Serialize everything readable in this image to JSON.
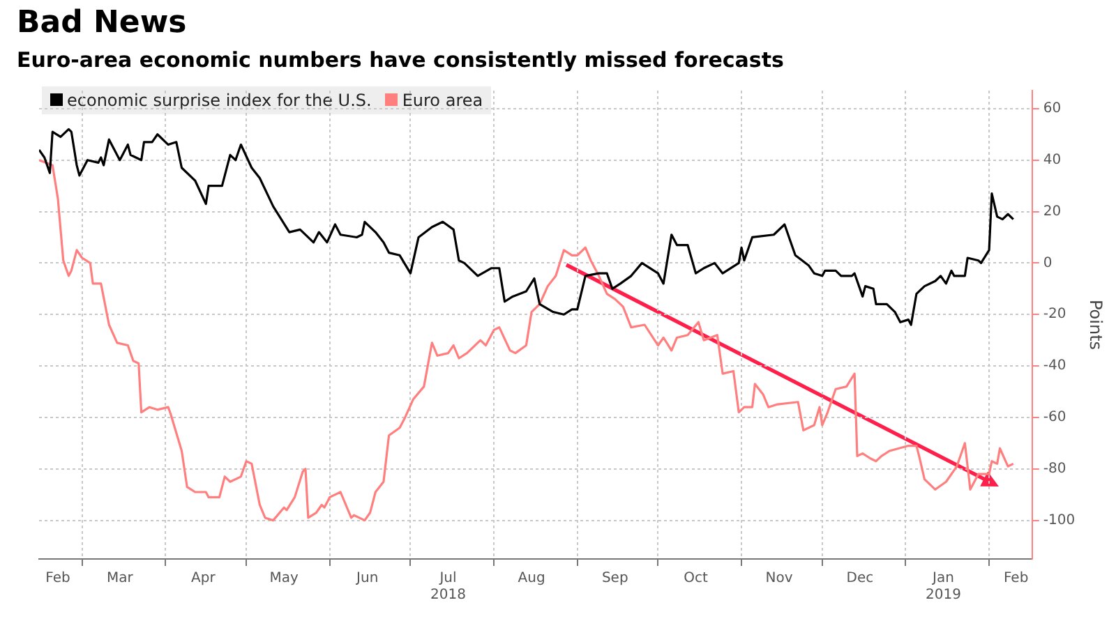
{
  "chart_data": {
    "type": "line",
    "title": "Bad News",
    "subtitle": "Euro-area economic numbers have consistently missed forecasts",
    "ylabel": "Points",
    "x": [
      "2018-02-13",
      "2018-02-15",
      "2018-02-17",
      "2018-02-18",
      "2018-02-21",
      "2018-02-24",
      "2018-02-25",
      "2018-02-27",
      "2018-02-28",
      "2018-03-03",
      "2018-03-07",
      "2018-03-08",
      "2018-03-09",
      "2018-03-11",
      "2018-03-15",
      "2018-03-18",
      "2018-03-19",
      "2018-03-23",
      "2018-03-24",
      "2018-03-27",
      "2018-03-29",
      "2018-04-02",
      "2018-04-05",
      "2018-04-07",
      "2018-04-12",
      "2018-04-16",
      "2018-04-17",
      "2018-04-22",
      "2018-04-25",
      "2018-04-27",
      "2018-04-29",
      "2018-05-03",
      "2018-05-06",
      "2018-05-11",
      "2018-05-17",
      "2018-05-21",
      "2018-05-26",
      "2018-05-28",
      "2018-05-31",
      "2018-06-03",
      "2018-06-05",
      "2018-06-11",
      "2018-06-13",
      "2018-06-14",
      "2018-06-18",
      "2018-06-21",
      "2018-06-23",
      "2018-06-27",
      "2018-07-01",
      "2018-07-04",
      "2018-07-09",
      "2018-07-13",
      "2018-07-17",
      "2018-07-19",
      "2018-07-21",
      "2018-07-26",
      "2018-07-31",
      "2018-08-03",
      "2018-08-05",
      "2018-08-08",
      "2018-08-13",
      "2018-08-16",
      "2018-08-18",
      "2018-08-23",
      "2018-08-27",
      "2018-08-30",
      "2018-09-01",
      "2018-09-04",
      "2018-09-09",
      "2018-09-12",
      "2018-09-14",
      "2018-09-17",
      "2018-09-21",
      "2018-09-25",
      "2018-10-01",
      "2018-10-03",
      "2018-10-06",
      "2018-10-08",
      "2018-10-12",
      "2018-10-15",
      "2018-10-18",
      "2018-10-22",
      "2018-10-25",
      "2018-10-31",
      "2018-11-01",
      "2018-11-02",
      "2018-11-05",
      "2018-11-13",
      "2018-11-17",
      "2018-11-19",
      "2018-11-21",
      "2018-11-26",
      "2018-11-28",
      "2018-12-01",
      "2018-12-02",
      "2018-12-06",
      "2018-12-08",
      "2018-12-12",
      "2018-12-13",
      "2018-12-16",
      "2018-12-17",
      "2018-12-20",
      "2018-12-21",
      "2018-12-25",
      "2018-12-28",
      "2018-12-30",
      "2019-01-02",
      "2019-01-03",
      "2019-01-05",
      "2019-01-08",
      "2019-01-12",
      "2019-01-14",
      "2019-01-16",
      "2019-01-18",
      "2019-01-19",
      "2019-01-23",
      "2019-01-24",
      "2019-01-28",
      "2019-01-29",
      "2019-02-01",
      "2019-02-02",
      "2019-02-04",
      "2019-02-06",
      "2019-02-08",
      "2019-02-10"
    ],
    "series": [
      {
        "name": "economic surprise index for the U.S.",
        "color": "#000000",
        "values": [
          44,
          41,
          35,
          51,
          49,
          52,
          51,
          38,
          34,
          40,
          39,
          41,
          38,
          48,
          40,
          46,
          42,
          40,
          47,
          47,
          50,
          46,
          47,
          37,
          32,
          23,
          30,
          30,
          42,
          40,
          46,
          37,
          33,
          22,
          12,
          13,
          8,
          12,
          8,
          15,
          11,
          10,
          11,
          16,
          12,
          8,
          4,
          3,
          -4,
          10,
          14,
          16,
          13,
          1,
          0,
          -5,
          -2,
          -2,
          -15,
          -13,
          -11,
          -6,
          -16,
          -19,
          -20,
          -18,
          -18,
          -5,
          -4,
          -4,
          -10,
          -8,
          -5,
          0,
          -4,
          -8,
          11,
          7,
          7,
          -4,
          -2,
          0,
          -4,
          0,
          6,
          1,
          10,
          11,
          15,
          9,
          3,
          -1,
          -4,
          -5,
          -3,
          -3,
          -5,
          -5,
          -4,
          -13,
          -9,
          -10,
          -16,
          -16,
          -19,
          -23,
          -22,
          -24,
          -12,
          -9,
          -7,
          -5,
          -8,
          -3,
          -5,
          -5,
          2,
          1,
          0,
          5,
          27,
          18,
          17,
          19,
          17
        ]
      },
      {
        "name": "Euro area",
        "color": "#ff7f7f",
        "x": [
          "2018-02-13",
          "2018-02-18",
          "2018-02-20",
          "2018-02-22",
          "2018-02-24",
          "2018-02-25",
          "2018-02-27",
          "2018-03-01",
          "2018-03-04",
          "2018-03-05",
          "2018-03-08",
          "2018-03-11",
          "2018-03-14",
          "2018-03-18",
          "2018-03-20",
          "2018-03-22",
          "2018-03-23",
          "2018-03-26",
          "2018-03-29",
          "2018-04-02",
          "2018-04-03",
          "2018-04-07",
          "2018-04-09",
          "2018-04-12",
          "2018-04-16",
          "2018-04-17",
          "2018-04-21",
          "2018-04-23",
          "2018-04-25",
          "2018-04-29",
          "2018-05-01",
          "2018-05-03",
          "2018-05-06",
          "2018-05-08",
          "2018-05-11",
          "2018-05-15",
          "2018-05-16",
          "2018-05-19",
          "2018-05-22",
          "2018-05-23",
          "2018-05-24",
          "2018-05-27",
          "2018-05-29",
          "2018-05-30",
          "2018-06-01",
          "2018-06-05",
          "2018-06-09",
          "2018-06-10",
          "2018-06-14",
          "2018-06-16",
          "2018-06-18",
          "2018-06-21",
          "2018-06-23",
          "2018-06-27",
          "2018-06-29",
          "2018-07-02",
          "2018-07-06",
          "2018-07-09",
          "2018-07-11",
          "2018-07-15",
          "2018-07-17",
          "2018-07-19",
          "2018-07-22",
          "2018-07-27",
          "2018-07-29",
          "2018-08-01",
          "2018-08-03",
          "2018-08-07",
          "2018-08-09",
          "2018-08-13",
          "2018-08-15",
          "2018-08-18",
          "2018-08-21",
          "2018-08-24",
          "2018-08-27",
          "2018-08-30",
          "2018-09-01",
          "2018-09-04",
          "2018-09-06",
          "2018-09-09",
          "2018-09-12",
          "2018-09-15",
          "2018-09-18",
          "2018-09-21",
          "2018-09-26",
          "2018-10-01",
          "2018-10-03",
          "2018-10-06",
          "2018-10-08",
          "2018-10-12",
          "2018-10-16",
          "2018-10-18",
          "2018-10-23",
          "2018-10-25",
          "2018-10-29",
          "2018-10-31",
          "2018-11-02",
          "2018-11-05",
          "2018-11-06",
          "2018-11-09",
          "2018-11-11",
          "2018-11-14",
          "2018-11-22",
          "2018-11-24",
          "2018-11-28",
          "2018-11-30",
          "2018-12-01",
          "2018-12-03",
          "2018-12-06",
          "2018-12-10",
          "2018-12-13",
          "2018-12-14",
          "2018-12-16",
          "2018-12-19",
          "2018-12-21",
          "2018-12-23",
          "2018-12-26",
          "2019-01-02",
          "2019-01-05",
          "2019-01-06",
          "2019-01-08",
          "2019-01-12",
          "2019-01-16",
          "2019-01-20",
          "2019-01-23",
          "2019-01-25",
          "2019-01-28",
          "2019-02-01",
          "2019-02-02",
          "2019-02-04",
          "2019-02-05",
          "2019-02-08",
          "2019-02-10"
        ],
        "values": [
          40,
          38,
          25,
          1,
          -5,
          -3,
          5,
          2,
          0,
          -8,
          -8,
          -24,
          -31,
          -32,
          -38,
          -39,
          -58,
          -56,
          -57,
          -56,
          -59,
          -73,
          -87,
          -89,
          -89,
          -91,
          -91,
          -83,
          -85,
          -83,
          -77,
          -78,
          -94,
          -99,
          -100,
          -95,
          -96,
          -91,
          -81,
          -80,
          -99,
          -97,
          -94,
          -95,
          -91,
          -89,
          -99,
          -98,
          -100,
          -97,
          -89,
          -85,
          -67,
          -64,
          -60,
          -53,
          -48,
          -31,
          -36,
          -35,
          -32,
          -37,
          -35,
          -30,
          -32,
          -26,
          -25,
          -34,
          -35,
          -32,
          -19,
          -16,
          -9,
          -5,
          5,
          3,
          3,
          6,
          1,
          -5,
          -12,
          -14,
          -17,
          -25,
          -24,
          -32,
          -29,
          -34,
          -29,
          -28,
          -23,
          -30,
          -28,
          -43,
          -42,
          -58,
          -56,
          -56,
          -47,
          -51,
          -56,
          -55,
          -54,
          -65,
          -63,
          -56,
          -63,
          -58,
          -49,
          -48,
          -43,
          -75,
          -74,
          -76,
          -77,
          -75,
          -73,
          -71,
          -71,
          -75,
          -84,
          -88,
          -85,
          -79,
          -70,
          -88,
          -82,
          -82,
          -77,
          -78,
          -72,
          -79,
          -78
        ]
      }
    ],
    "xlim": [
      "2018-02-13",
      "2019-02-17"
    ],
    "xticks": [
      {
        "value": "2018-02-20",
        "label": "Feb"
      },
      {
        "value": "2018-03-01",
        "label": null
      },
      {
        "value": "2018-03-15",
        "label": "Mar"
      },
      {
        "value": "2018-04-01",
        "label": null
      },
      {
        "value": "2018-04-15",
        "label": "Apr"
      },
      {
        "value": "2018-05-01",
        "label": null
      },
      {
        "value": "2018-05-15",
        "label": "May"
      },
      {
        "value": "2018-06-01",
        "label": null
      },
      {
        "value": "2018-06-15",
        "label": "Jun"
      },
      {
        "value": "2018-07-01",
        "label": null
      },
      {
        "value": "2018-07-15",
        "label": "Jul\n2018"
      },
      {
        "value": "2018-08-01",
        "label": null
      },
      {
        "value": "2018-08-15",
        "label": "Aug"
      },
      {
        "value": "2018-09-01",
        "label": null
      },
      {
        "value": "2018-09-15",
        "label": "Sep"
      },
      {
        "value": "2018-10-01",
        "label": null
      },
      {
        "value": "2018-10-15",
        "label": "Oct"
      },
      {
        "value": "2018-11-01",
        "label": null
      },
      {
        "value": "2018-11-15",
        "label": "Nov"
      },
      {
        "value": "2018-12-01",
        "label": null
      },
      {
        "value": "2018-12-15",
        "label": "Dec"
      },
      {
        "value": "2019-01-01",
        "label": null
      },
      {
        "value": "2019-01-15",
        "label": "Jan\n2019"
      },
      {
        "value": "2019-02-01",
        "label": null
      },
      {
        "value": "2019-02-11",
        "label": "Feb"
      }
    ],
    "ylim": [
      -115,
      67
    ],
    "yticks": [
      -100,
      -80,
      -60,
      -40,
      -20,
      0,
      20,
      40,
      60
    ],
    "grid": true,
    "legend": "top left",
    "marker": "none"
  }
}
